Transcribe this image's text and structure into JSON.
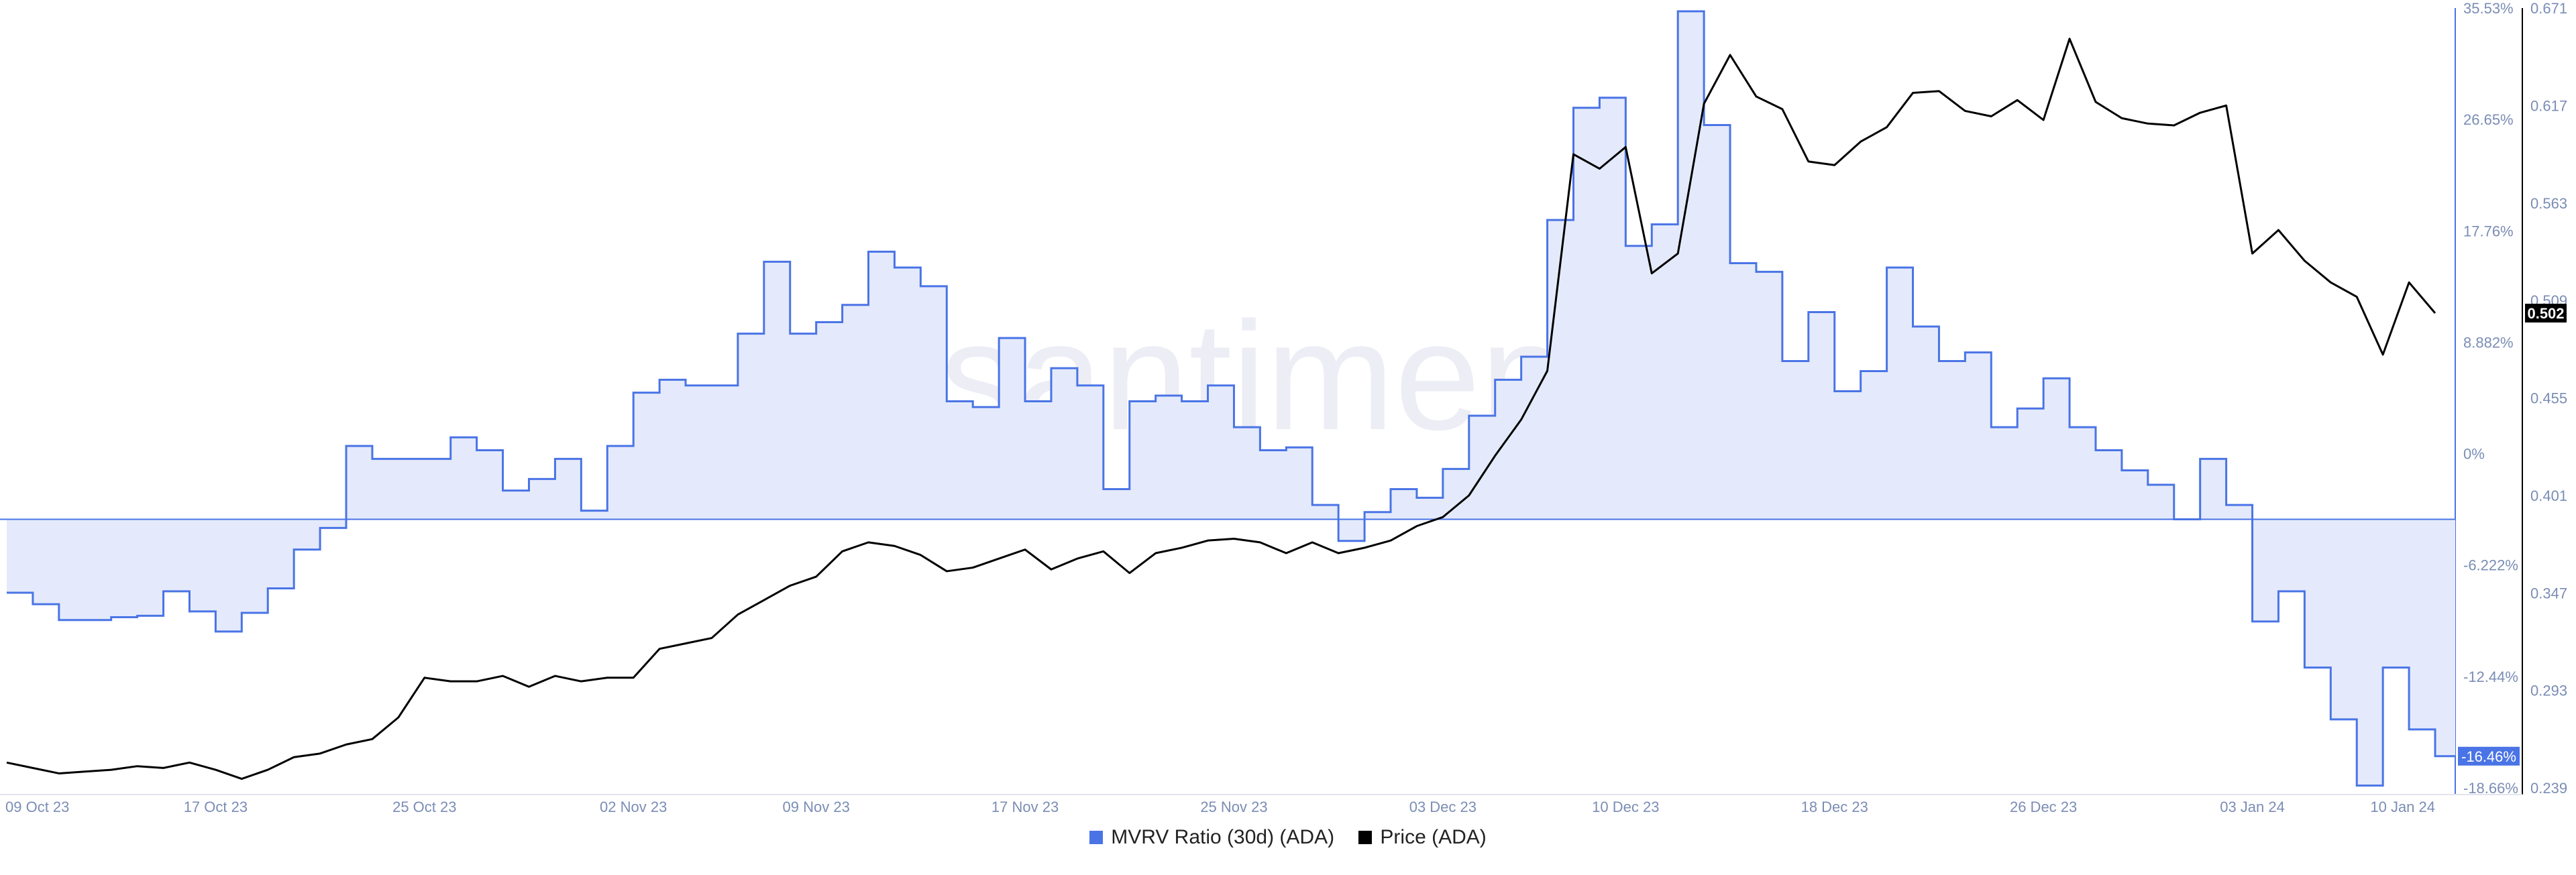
{
  "chart_data": {
    "type": "line",
    "watermark": "santiment",
    "x_dates": [
      "09 Oct 23",
      "17 Oct 23",
      "25 Oct 23",
      "02 Nov 23",
      "09 Nov 23",
      "17 Nov 23",
      "25 Nov 23",
      "03 Dec 23",
      "10 Dec 23",
      "18 Dec 23",
      "26 Dec 23",
      "03 Jan 24",
      "10 Jan 24"
    ],
    "left_axis": {
      "series": "MVRV Ratio (30d) (ADA)",
      "ticks": [
        "35.53%",
        "26.65%",
        "17.76%",
        "8.882%",
        "0%",
        "-6.222%",
        "-12.44%",
        "-18.66%"
      ],
      "range": [
        -18.66,
        35.53
      ],
      "current_label": "-16.46%",
      "color": "#4a74e6"
    },
    "right_axis": {
      "series": "Price (ADA)",
      "ticks": [
        "0.671",
        "0.617",
        "0.563",
        "0.509",
        "0.455",
        "0.401",
        "0.347",
        "0.293",
        "0.239"
      ],
      "range": [
        0.239,
        0.671
      ],
      "current_label": "0.502",
      "color": "#000000"
    },
    "series": [
      {
        "name": "MVRV Ratio (30d) (ADA)",
        "axis": "left",
        "style": "step-area",
        "color": "#4a74e6",
        "fill": "#e4eafb",
        "points": [
          [
            "09 Oct 23",
            -5.1
          ],
          [
            "10 Oct 23",
            -5.9
          ],
          [
            "11 Oct 23",
            -7.0
          ],
          [
            "12 Oct 23",
            -7.0
          ],
          [
            "13 Oct 23",
            -6.8
          ],
          [
            "14 Oct 23",
            -6.7
          ],
          [
            "15 Oct 23",
            -5.0
          ],
          [
            "16 Oct 23",
            -6.4
          ],
          [
            "17 Oct 23",
            -7.8
          ],
          [
            "18 Oct 23",
            -6.5
          ],
          [
            "19 Oct 23",
            -4.8
          ],
          [
            "20 Oct 23",
            -2.1
          ],
          [
            "21 Oct 23",
            -0.6
          ],
          [
            "22 Oct 23",
            5.1
          ],
          [
            "23 Oct 23",
            4.2
          ],
          [
            "24 Oct 23",
            4.2
          ],
          [
            "25 Oct 23",
            4.2
          ],
          [
            "26 Oct 23",
            5.7
          ],
          [
            "27 Oct 23",
            4.8
          ],
          [
            "28 Oct 23",
            2.0
          ],
          [
            "29 Oct 23",
            2.8
          ],
          [
            "30 Oct 23",
            4.2
          ],
          [
            "31 Oct 23",
            0.6
          ],
          [
            "01 Nov 23",
            5.1
          ],
          [
            "02 Nov 23",
            8.8
          ],
          [
            "03 Nov 23",
            9.7
          ],
          [
            "04 Nov 23",
            9.3
          ],
          [
            "05 Nov 23",
            9.3
          ],
          [
            "06 Nov 23",
            12.9
          ],
          [
            "07 Nov 23",
            17.9
          ],
          [
            "08 Nov 23",
            12.9
          ],
          [
            "09 Nov 23",
            13.7
          ],
          [
            "10 Nov 23",
            14.9
          ],
          [
            "11 Nov 23",
            18.6
          ],
          [
            "12 Nov 23",
            17.5
          ],
          [
            "13 Nov 23",
            16.2
          ],
          [
            "14 Nov 23",
            8.2
          ],
          [
            "15 Nov 23",
            7.8
          ],
          [
            "16 Nov 23",
            12.6
          ],
          [
            "17 Nov 23",
            8.2
          ],
          [
            "18 Nov 23",
            10.5
          ],
          [
            "19 Nov 23",
            9.3
          ],
          [
            "20 Nov 23",
            2.1
          ],
          [
            "21 Nov 23",
            8.2
          ],
          [
            "22 Nov 23",
            8.6
          ],
          [
            "23 Nov 23",
            8.2
          ],
          [
            "24 Nov 23",
            9.3
          ],
          [
            "25 Nov 23",
            6.4
          ],
          [
            "26 Nov 23",
            4.8
          ],
          [
            "27 Nov 23",
            5.0
          ],
          [
            "28 Nov 23",
            1.0
          ],
          [
            "29 Nov 23",
            -1.5
          ],
          [
            "30 Nov 23",
            0.5
          ],
          [
            "01 Dec 23",
            2.1
          ],
          [
            "02 Dec 23",
            1.5
          ],
          [
            "03 Dec 23",
            3.5
          ],
          [
            "04 Dec 23",
            7.2
          ],
          [
            "05 Dec 23",
            9.7
          ],
          [
            "06 Dec 23",
            11.3
          ],
          [
            "07 Dec 23",
            20.8
          ],
          [
            "08 Dec 23",
            28.6
          ],
          [
            "09 Dec 23",
            29.3
          ],
          [
            "10 Dec 23",
            19.0
          ],
          [
            "11 Dec 23",
            20.5
          ],
          [
            "12 Dec 23",
            35.3
          ],
          [
            "13 Dec 23",
            27.4
          ],
          [
            "14 Dec 23",
            17.8
          ],
          [
            "15 Dec 23",
            17.2
          ],
          [
            "16 Dec 23",
            11.0
          ],
          [
            "17 Dec 23",
            14.4
          ],
          [
            "18 Dec 23",
            8.9
          ],
          [
            "19 Dec 23",
            10.3
          ],
          [
            "20 Dec 23",
            17.5
          ],
          [
            "21 Dec 23",
            13.4
          ],
          [
            "22 Dec 23",
            11.0
          ],
          [
            "23 Dec 23",
            11.6
          ],
          [
            "24 Dec 23",
            6.4
          ],
          [
            "25 Dec 23",
            7.7
          ],
          [
            "26 Dec 23",
            9.8
          ],
          [
            "27 Dec 23",
            6.4
          ],
          [
            "28 Dec 23",
            4.8
          ],
          [
            "29 Dec 23",
            3.4
          ],
          [
            "30 Dec 23",
            2.4
          ],
          [
            "31 Dec 23",
            0.0
          ],
          [
            "01 Jan 24",
            4.2
          ],
          [
            "02 Jan 24",
            1.0
          ],
          [
            "03 Jan 24",
            -7.1
          ],
          [
            "04 Jan 24",
            -5.0
          ],
          [
            "05 Jan 24",
            -10.3
          ],
          [
            "06 Jan 24",
            -13.9
          ],
          [
            "07 Jan 24",
            -18.5
          ],
          [
            "08 Jan 24",
            -10.3
          ],
          [
            "09 Jan 24",
            -14.6
          ],
          [
            "10 Jan 24",
            -16.46
          ]
        ]
      },
      {
        "name": "Price (ADA)",
        "axis": "right",
        "style": "line",
        "color": "#000000",
        "points": [
          [
            "09 Oct 23",
            0.253
          ],
          [
            "10 Oct 23",
            0.25
          ],
          [
            "11 Oct 23",
            0.247
          ],
          [
            "12 Oct 23",
            0.248
          ],
          [
            "13 Oct 23",
            0.249
          ],
          [
            "14 Oct 23",
            0.251
          ],
          [
            "15 Oct 23",
            0.25
          ],
          [
            "16 Oct 23",
            0.253
          ],
          [
            "17 Oct 23",
            0.249
          ],
          [
            "18 Oct 23",
            0.244
          ],
          [
            "19 Oct 23",
            0.249
          ],
          [
            "20 Oct 23",
            0.256
          ],
          [
            "21 Oct 23",
            0.258
          ],
          [
            "22 Oct 23",
            0.263
          ],
          [
            "23 Oct 23",
            0.266
          ],
          [
            "24 Oct 23",
            0.278
          ],
          [
            "25 Oct 23",
            0.3
          ],
          [
            "26 Oct 23",
            0.298
          ],
          [
            "27 Oct 23",
            0.298
          ],
          [
            "28 Oct 23",
            0.301
          ],
          [
            "29 Oct 23",
            0.295
          ],
          [
            "30 Oct 23",
            0.301
          ],
          [
            "31 Oct 23",
            0.298
          ],
          [
            "01 Nov 23",
            0.3
          ],
          [
            "02 Nov 23",
            0.3
          ],
          [
            "03 Nov 23",
            0.316
          ],
          [
            "04 Nov 23",
            0.319
          ],
          [
            "05 Nov 23",
            0.322
          ],
          [
            "06 Nov 23",
            0.335
          ],
          [
            "07 Nov 23",
            0.343
          ],
          [
            "08 Nov 23",
            0.351
          ],
          [
            "09 Nov 23",
            0.356
          ],
          [
            "10 Nov 23",
            0.37
          ],
          [
            "11 Nov 23",
            0.375
          ],
          [
            "12 Nov 23",
            0.373
          ],
          [
            "13 Nov 23",
            0.368
          ],
          [
            "14 Nov 23",
            0.359
          ],
          [
            "15 Nov 23",
            0.361
          ],
          [
            "16 Nov 23",
            0.366
          ],
          [
            "17 Nov 23",
            0.371
          ],
          [
            "18 Nov 23",
            0.36
          ],
          [
            "19 Nov 23",
            0.366
          ],
          [
            "20 Nov 23",
            0.37
          ],
          [
            "21 Nov 23",
            0.358
          ],
          [
            "22 Nov 23",
            0.369
          ],
          [
            "23 Nov 23",
            0.372
          ],
          [
            "24 Nov 23",
            0.376
          ],
          [
            "25 Nov 23",
            0.377
          ],
          [
            "26 Nov 23",
            0.375
          ],
          [
            "27 Nov 23",
            0.369
          ],
          [
            "28 Nov 23",
            0.375
          ],
          [
            "29 Nov 23",
            0.369
          ],
          [
            "30 Nov 23",
            0.372
          ],
          [
            "01 Dec 23",
            0.376
          ],
          [
            "02 Dec 23",
            0.384
          ],
          [
            "03 Dec 23",
            0.389
          ],
          [
            "04 Dec 23",
            0.401
          ],
          [
            "05 Dec 23",
            0.423
          ],
          [
            "06 Dec 23",
            0.443
          ],
          [
            "07 Dec 23",
            0.47
          ],
          [
            "08 Dec 23",
            0.59
          ],
          [
            "09 Dec 23",
            0.582
          ],
          [
            "10 Dec 23",
            0.594
          ],
          [
            "11 Dec 23",
            0.524
          ],
          [
            "12 Dec 23",
            0.535
          ],
          [
            "13 Dec 23",
            0.618
          ],
          [
            "14 Dec 23",
            0.645
          ],
          [
            "15 Dec 23",
            0.622
          ],
          [
            "16 Dec 23",
            0.615
          ],
          [
            "17 Dec 23",
            0.586
          ],
          [
            "18 Dec 23",
            0.584
          ],
          [
            "19 Dec 23",
            0.597
          ],
          [
            "20 Dec 23",
            0.605
          ],
          [
            "21 Dec 23",
            0.624
          ],
          [
            "22 Dec 23",
            0.625
          ],
          [
            "23 Dec 23",
            0.614
          ],
          [
            "24 Dec 23",
            0.611
          ],
          [
            "25 Dec 23",
            0.62
          ],
          [
            "26 Dec 23",
            0.609
          ],
          [
            "27 Dec 23",
            0.654
          ],
          [
            "28 Dec 23",
            0.619
          ],
          [
            "29 Dec 23",
            0.61
          ],
          [
            "30 Dec 23",
            0.607
          ],
          [
            "31 Dec 23",
            0.606
          ],
          [
            "01 Jan 24",
            0.613
          ],
          [
            "02 Jan 24",
            0.617
          ],
          [
            "03 Jan 24",
            0.535
          ],
          [
            "04 Jan 24",
            0.548
          ],
          [
            "05 Jan 24",
            0.531
          ],
          [
            "06 Jan 24",
            0.519
          ],
          [
            "07 Jan 24",
            0.511
          ],
          [
            "08 Jan 24",
            0.479
          ],
          [
            "09 Jan 24",
            0.519
          ],
          [
            "10 Jan 24",
            0.502
          ]
        ]
      }
    ],
    "legend": {
      "placement": "bottom-center",
      "items": [
        {
          "label": "MVRV Ratio (30d) (ADA)",
          "color": "#4a74e6"
        },
        {
          "label": "Price (ADA)",
          "color": "#000000"
        }
      ]
    }
  }
}
